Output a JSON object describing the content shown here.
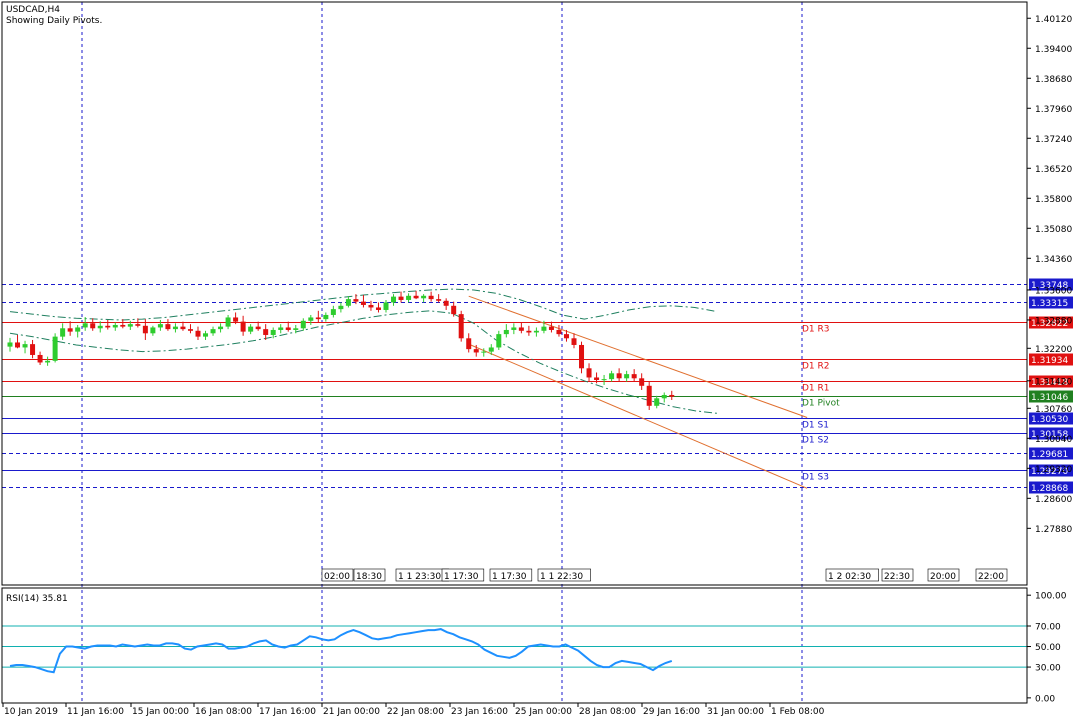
{
  "chart_header": {
    "symbol": "USDCAD,H4",
    "note": "Showing Daily Pivots."
  },
  "colors": {
    "bull": "#2ecc2e",
    "bear": "#e01010",
    "grid": "#1a1acc",
    "axis": "#1a1acc",
    "pivot": "#208020",
    "resistance": "#e01010",
    "support": "#1a1acc",
    "trend": "#e07030",
    "envelope": "#208060",
    "rsi": "#1e90ff",
    "rsi_levels": "#10b0b0"
  },
  "chart_data": [
    {
      "type": "candlestick",
      "title": "USDCAD,H4",
      "subtitle": "Showing Daily Pivots.",
      "ylim": [
        1.2652,
        1.4051
      ],
      "y_ticks": [
        "1.40120",
        "1.39400",
        "1.38680",
        "1.37960",
        "1.37240",
        "1.36520",
        "1.35800",
        "1.35080",
        "1.34360",
        "1.33600",
        "1.32880",
        "1.32200",
        "1.31420",
        "1.30760",
        "1.30040",
        "1.29320",
        "1.28600",
        "1.27880"
      ],
      "x_ticks": [
        "10 Jan 2019",
        "11 Jan 16:00",
        "15 Jan 00:00",
        "16 Jan 08:00",
        "17 Jan 16:00",
        "21 Jan 00:00",
        "22 Jan 08:00",
        "23 Jan 16:00",
        "25 Jan 00:00",
        "28 Jan 08:00",
        "29 Jan 16:00",
        "31 Jan 00:00",
        "1 Feb 08:00"
      ],
      "period_separators": [
        "11 Jan 16:00",
        "21 Jan 00:00",
        "25 Jan 00:00",
        "1 Feb 08:00"
      ],
      "session_labels": [
        "02:00",
        "18:30",
        "1 1 23:30",
        "1 17:30",
        "1 17:30",
        "1 1 22:30",
        "1 2 02:30",
        "22:30",
        "20:00",
        "22:00"
      ],
      "price_levels": [
        {
          "label": "D1 R3",
          "value": 1.32822,
          "style": "solid",
          "color": "resistance"
        },
        {
          "label": "D1 R2",
          "value": 1.31934,
          "style": "solid",
          "color": "resistance"
        },
        {
          "label": "D1 R1",
          "value": 1.31418,
          "style": "solid",
          "color": "resistance"
        },
        {
          "label": "D1 Pivot",
          "value": 1.31046,
          "style": "solid",
          "color": "pivot"
        },
        {
          "label": "D1 S1",
          "value": 1.3053,
          "style": "solid",
          "color": "support"
        },
        {
          "label": "D1 S2",
          "value": 1.30158,
          "style": "solid",
          "color": "support"
        },
        {
          "label": "D1 S3",
          "value": 1.2927,
          "style": "solid",
          "color": "support"
        },
        {
          "label": "",
          "value": 1.33748,
          "style": "dashed",
          "color": "support"
        },
        {
          "label": "",
          "value": 1.33315,
          "style": "dashed",
          "color": "support"
        },
        {
          "label": "",
          "value": 1.29681,
          "style": "dashed",
          "color": "support"
        },
        {
          "label": "",
          "value": 1.28868,
          "style": "dashed",
          "color": "support"
        }
      ],
      "ohlc": [
        [
          1.3224,
          1.3245,
          1.3212,
          1.3234
        ],
        [
          1.3234,
          1.3252,
          1.322,
          1.3222
        ],
        [
          1.3222,
          1.3238,
          1.3208,
          1.323
        ],
        [
          1.323,
          1.324,
          1.3196,
          1.3204
        ],
        [
          1.3204,
          1.3212,
          1.318,
          1.3186
        ],
        [
          1.3186,
          1.32,
          1.3178,
          1.319
        ],
        [
          1.319,
          1.3256,
          1.3186,
          1.3248
        ],
        [
          1.3248,
          1.328,
          1.324,
          1.3268
        ],
        [
          1.3268,
          1.3285,
          1.325,
          1.326
        ],
        [
          1.326,
          1.3276,
          1.3246,
          1.327
        ],
        [
          1.327,
          1.3295,
          1.3262,
          1.328
        ],
        [
          1.328,
          1.3292,
          1.3262,
          1.3268
        ],
        [
          1.3268,
          1.3285,
          1.3258,
          1.3274
        ],
        [
          1.3274,
          1.3288,
          1.3265,
          1.327
        ],
        [
          1.327,
          1.3282,
          1.3262,
          1.3276
        ],
        [
          1.3276,
          1.329,
          1.3268,
          1.3272
        ],
        [
          1.3272,
          1.3286,
          1.3264,
          1.3278
        ],
        [
          1.3278,
          1.3292,
          1.327,
          1.3274
        ],
        [
          1.3274,
          1.329,
          1.324,
          1.3256
        ],
        [
          1.3256,
          1.3274,
          1.325,
          1.327
        ],
        [
          1.327,
          1.3288,
          1.3262,
          1.3278
        ],
        [
          1.3278,
          1.329,
          1.3262,
          1.3266
        ],
        [
          1.3266,
          1.328,
          1.3258,
          1.3272
        ],
        [
          1.3272,
          1.3284,
          1.3262,
          1.3266
        ],
        [
          1.3266,
          1.3278,
          1.3256,
          1.3262
        ],
        [
          1.3262,
          1.3272,
          1.324,
          1.3248
        ],
        [
          1.3248,
          1.3262,
          1.324,
          1.3256
        ],
        [
          1.3256,
          1.3272,
          1.325,
          1.3266
        ],
        [
          1.3266,
          1.328,
          1.3258,
          1.3272
        ],
        [
          1.3272,
          1.33,
          1.3266,
          1.3294
        ],
        [
          1.3294,
          1.3306,
          1.3278,
          1.3284
        ],
        [
          1.3284,
          1.3298,
          1.325,
          1.326
        ],
        [
          1.326,
          1.3278,
          1.3254,
          1.3272
        ],
        [
          1.3272,
          1.3284,
          1.3262,
          1.3266
        ],
        [
          1.3266,
          1.3278,
          1.324,
          1.3252
        ],
        [
          1.3252,
          1.327,
          1.3244,
          1.3264
        ],
        [
          1.3264,
          1.3278,
          1.3256,
          1.327
        ],
        [
          1.327,
          1.3284,
          1.326,
          1.3264
        ],
        [
          1.3264,
          1.3276,
          1.3256,
          1.3268
        ],
        [
          1.3268,
          1.3292,
          1.3262,
          1.3286
        ],
        [
          1.3286,
          1.33,
          1.3276,
          1.3294
        ],
        [
          1.3294,
          1.331,
          1.3282,
          1.329
        ],
        [
          1.329,
          1.3306,
          1.3284,
          1.33
        ],
        [
          1.33,
          1.3322,
          1.3294,
          1.3314
        ],
        [
          1.3314,
          1.333,
          1.3306,
          1.3322
        ],
        [
          1.3322,
          1.3345,
          1.3318,
          1.3338
        ],
        [
          1.3338,
          1.335,
          1.3326,
          1.3332
        ],
        [
          1.3332,
          1.3348,
          1.3318,
          1.3324
        ],
        [
          1.3324,
          1.3334,
          1.331,
          1.3318
        ],
        [
          1.3318,
          1.333,
          1.3306,
          1.3312
        ],
        [
          1.3312,
          1.3336,
          1.3306,
          1.333
        ],
        [
          1.333,
          1.335,
          1.3322,
          1.3344
        ],
        [
          1.3344,
          1.3356,
          1.333,
          1.3336
        ],
        [
          1.3336,
          1.3352,
          1.333,
          1.3346
        ],
        [
          1.3346,
          1.3358,
          1.3338,
          1.334
        ],
        [
          1.334,
          1.335,
          1.333,
          1.3346
        ],
        [
          1.3346,
          1.3356,
          1.3332,
          1.3338
        ],
        [
          1.3338,
          1.335,
          1.333,
          1.3334
        ],
        [
          1.3334,
          1.334,
          1.3312,
          1.3322
        ],
        [
          1.3322,
          1.3332,
          1.3296,
          1.3302
        ],
        [
          1.3302,
          1.331,
          1.3236,
          1.3244
        ],
        [
          1.3244,
          1.3256,
          1.321,
          1.3218
        ],
        [
          1.3218,
          1.3228,
          1.32,
          1.321
        ],
        [
          1.321,
          1.322,
          1.32,
          1.3212
        ],
        [
          1.3212,
          1.323,
          1.3204,
          1.3222
        ],
        [
          1.3222,
          1.3262,
          1.3216,
          1.3254
        ],
        [
          1.3254,
          1.3278,
          1.3246,
          1.3264
        ],
        [
          1.3264,
          1.328,
          1.3254,
          1.327
        ],
        [
          1.327,
          1.3282,
          1.3256,
          1.3262
        ],
        [
          1.3262,
          1.3274,
          1.325,
          1.3258
        ],
        [
          1.3258,
          1.327,
          1.3248,
          1.3262
        ],
        [
          1.3262,
          1.3286,
          1.3256,
          1.3272
        ],
        [
          1.3272,
          1.3284,
          1.3258,
          1.3264
        ],
        [
          1.3264,
          1.3276,
          1.3248,
          1.3254
        ],
        [
          1.3254,
          1.3264,
          1.3236,
          1.3244
        ],
        [
          1.3244,
          1.3256,
          1.322,
          1.3228
        ],
        [
          1.3228,
          1.3236,
          1.316,
          1.3172
        ],
        [
          1.3172,
          1.3184,
          1.314,
          1.315
        ],
        [
          1.315,
          1.3162,
          1.3136,
          1.3144
        ],
        [
          1.3144,
          1.3156,
          1.3132,
          1.3146
        ],
        [
          1.3146,
          1.3166,
          1.314,
          1.316
        ],
        [
          1.316,
          1.3172,
          1.314,
          1.3148
        ],
        [
          1.3148,
          1.3166,
          1.314,
          1.3158
        ],
        [
          1.3158,
          1.317,
          1.314,
          1.3148
        ],
        [
          1.3148,
          1.316,
          1.312,
          1.313
        ],
        [
          1.313,
          1.314,
          1.3072,
          1.3082
        ],
        [
          1.3082,
          1.3106,
          1.3076,
          1.31
        ],
        [
          1.31,
          1.3114,
          1.309,
          1.3108
        ],
        [
          1.3108,
          1.3118,
          1.3096,
          1.3104
        ]
      ],
      "envelope_upper": [
        1.3308,
        1.3302,
        1.3296,
        1.3292,
        1.329,
        1.3288,
        1.329,
        1.3294,
        1.33,
        1.3306,
        1.3312,
        1.3318,
        1.3324,
        1.333,
        1.3336,
        1.3342,
        1.3348,
        1.3352,
        1.3356,
        1.336,
        1.3362,
        1.336,
        1.3352,
        1.3338,
        1.332,
        1.33,
        1.329,
        1.33,
        1.3312,
        1.332,
        1.3322,
        1.3318,
        1.3308
      ],
      "envelope_lower": [
        1.3256,
        1.3248,
        1.3238,
        1.3228,
        1.3222,
        1.3216,
        1.3212,
        1.3214,
        1.3218,
        1.3224,
        1.323,
        1.3238,
        1.3248,
        1.326,
        1.3272,
        1.3282,
        1.3292,
        1.33,
        1.3306,
        1.331,
        1.3304,
        1.328,
        1.324,
        1.321,
        1.3184,
        1.3162,
        1.3142,
        1.3124,
        1.3108,
        1.3094,
        1.308,
        1.307,
        1.3064
      ],
      "channel_upper": [
        [
          61,
          1.3345
        ],
        [
          106,
          1.3054
        ]
      ],
      "channel_lower": [
        [
          61,
          1.323
        ],
        [
          106,
          1.2884
        ]
      ]
    },
    {
      "type": "line",
      "title": "RSI(14) 35.81",
      "ylim": [
        -5,
        107
      ],
      "y_ticks": [
        "100.00",
        "70.00",
        "50.00",
        "30.00",
        "0.00"
      ],
      "levels": [
        70,
        50,
        30
      ],
      "values": [
        31,
        32,
        32,
        31,
        30,
        28,
        26,
        25,
        43,
        50,
        50,
        49,
        48,
        50,
        51,
        51,
        51,
        50,
        52,
        51,
        50,
        51,
        52,
        51,
        51,
        53,
        53,
        52,
        48,
        47,
        50,
        51,
        52,
        53,
        52,
        48,
        48,
        49,
        50,
        53,
        55,
        56,
        52,
        50,
        49,
        51,
        52,
        56,
        60,
        59,
        57,
        56,
        57,
        61,
        64,
        66,
        64,
        61,
        58,
        57,
        58,
        59,
        61,
        62,
        63,
        64,
        65,
        66,
        66,
        67,
        64,
        62,
        59,
        57,
        55,
        52,
        47,
        44,
        41,
        40,
        39,
        41,
        45,
        50,
        51,
        52,
        51,
        50,
        50,
        52,
        49,
        46,
        41,
        36,
        32,
        30,
        30,
        34,
        36,
        35,
        34,
        33,
        30,
        27,
        31,
        34,
        36
      ],
      "last": 35.81
    }
  ]
}
